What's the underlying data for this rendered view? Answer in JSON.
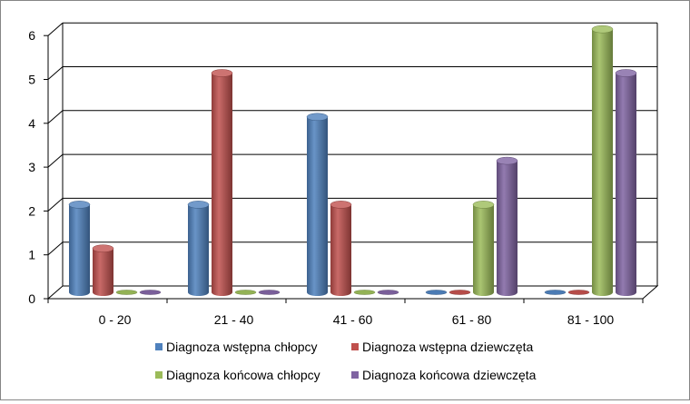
{
  "chart_data": {
    "type": "bar",
    "categories": [
      "0 - 20",
      "21 - 40",
      "41 - 60",
      "61 - 80",
      "81 - 100"
    ],
    "series": [
      {
        "name": "Diagnoza wstępna chłopcy",
        "color": "#4F81BD",
        "values": [
          2,
          2,
          4,
          0,
          0
        ]
      },
      {
        "name": "Diagnoza wstępna dziewczęta",
        "color": "#C0504D",
        "values": [
          1,
          5,
          2,
          0,
          0
        ]
      },
      {
        "name": "Diagnoza końcowa chłopcy",
        "color": "#9BBB59",
        "values": [
          0,
          0,
          0,
          2,
          6
        ]
      },
      {
        "name": "Diagnoza końcowa dziewczęta",
        "color": "#8064A2",
        "values": [
          0,
          0,
          0,
          3,
          5
        ]
      }
    ],
    "yticks": [
      "0",
      "1",
      "2",
      "3",
      "4",
      "5",
      "6"
    ],
    "ylim": [
      0,
      6
    ],
    "grid": true,
    "legend_position": "bottom",
    "style": "3d-cylinder"
  }
}
